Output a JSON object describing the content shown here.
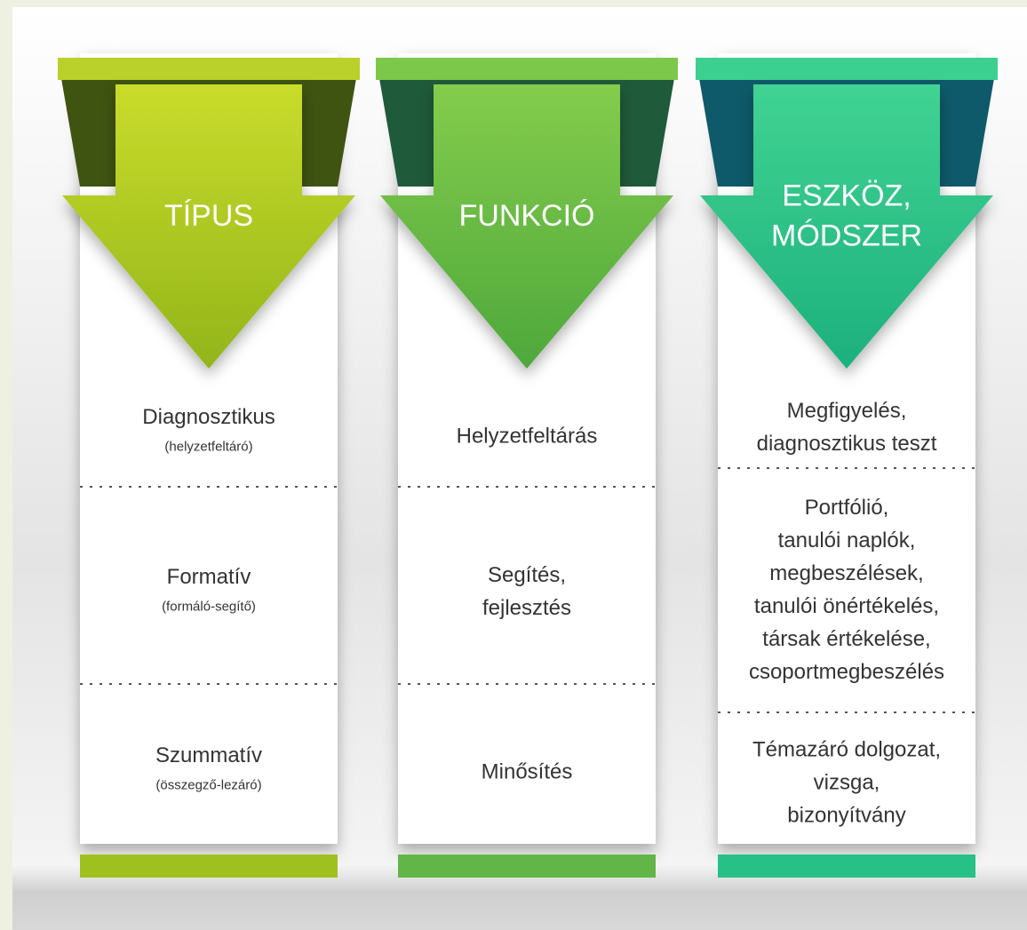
{
  "columns": [
    {
      "title": [
        "TÍPUS"
      ],
      "rows": [
        {
          "lines": [
            "Diagnosztikus"
          ],
          "note": "(helyzetfeltáró)"
        },
        {
          "lines": [
            "Formatív"
          ],
          "note": "(formáló-segítő)"
        },
        {
          "lines": [
            "Szummatív"
          ],
          "note": "(összegző-lezáró)"
        }
      ]
    },
    {
      "title": [
        "FUNKCIÓ"
      ],
      "rows": [
        {
          "lines": [
            "Helyzetfeltárás"
          ]
        },
        {
          "lines": [
            "Segítés,",
            "fejlesztés"
          ]
        },
        {
          "lines": [
            "Minősítés"
          ]
        }
      ]
    },
    {
      "title": [
        "ESZKÖZ,",
        "MÓDSZER"
      ],
      "rows": [
        {
          "lines": [
            "Megfigyelés,",
            "diagnosztikus teszt"
          ]
        },
        {
          "lines": [
            "Portfólió,",
            "tanulói naplók,",
            "megbeszélések,",
            "tanulói önértékelés,",
            "társak értékelése,",
            "csoportmegbeszélés"
          ]
        },
        {
          "lines": [
            "Témazáró dolgozat,",
            "vizsga,",
            "bizonyítvány"
          ]
        }
      ]
    }
  ]
}
